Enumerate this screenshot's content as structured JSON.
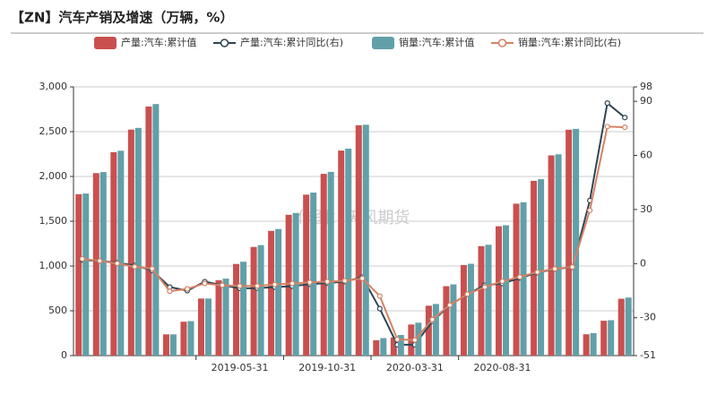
{
  "chart_data": {
    "type": "bar-line",
    "title": "【ZN】汽车产销及增速（万辆，%）",
    "watermark": "作图：天风期货",
    "legend": "top",
    "categories": [
      null,
      null,
      null,
      null,
      null,
      null,
      null,
      null,
      null,
      "2019-05-31",
      null,
      null,
      null,
      null,
      "2019-10-31",
      null,
      null,
      null,
      null,
      "2020-03-31",
      null,
      null,
      null,
      null,
      "2020-08-31",
      null,
      null,
      null,
      null,
      null,
      null,
      null
    ],
    "ylim": [
      0,
      3000
    ],
    "yticks": [
      0,
      500,
      {
        "value": 1000,
        "label": "1,000"
      },
      {
        "value": 1500,
        "label": "1,500"
      },
      {
        "value": 2000,
        "label": "2,000"
      },
      {
        "value": 2500,
        "label": "2,500"
      },
      {
        "value": 3000,
        "label": "3,000"
      }
    ],
    "y2lim": [
      -51,
      98
    ],
    "y2ticks": [
      -51,
      -30,
      0,
      30,
      60,
      90,
      98
    ],
    "grid": true,
    "series": [
      {
        "name": "产量:汽车:累计值",
        "kind": "bar",
        "color": "#c9504f",
        "values": [
          1802,
          2037,
          2271,
          2523,
          2781,
          237,
          378,
          637,
          842,
          1023,
          1213,
          1393,
          1572,
          1797,
          2029,
          2289,
          2572,
          172,
          202,
          347,
          557,
          775,
          1011,
          1222,
          1444,
          1696,
          1951,
          2235,
          2522,
          238,
          389,
          635
        ]
      },
      {
        "name": "产量:汽车:累计同比(右)",
        "kind": "line",
        "axis": "y2",
        "color": "#2f4554",
        "values": [
          2,
          1.5,
          0.5,
          -1,
          -3.8,
          -13,
          -15,
          -10,
          -12,
          -13.7,
          -13.6,
          -13,
          -12.5,
          -11.4,
          -10.8,
          -10,
          -7.5,
          -25,
          -45,
          -45,
          -32,
          -23,
          -17,
          -12,
          -11,
          -8,
          -5,
          -3,
          -2,
          35,
          89,
          81
        ]
      },
      {
        "name": "销量:汽车:累计值",
        "kind": "bar",
        "color": "#61a0a8",
        "values": [
          1809,
          2049,
          2287,
          2542,
          2808,
          237,
          385,
          637,
          859,
          1048,
          1233,
          1413,
          1592,
          1820,
          2051,
          2311,
          2577,
          195,
          230,
          367,
          576,
          795,
          1025,
          1237,
          1455,
          1712,
          1969,
          2247,
          2531,
          250,
          395,
          648
        ]
      },
      {
        "name": "销量:汽车:累计同比(右)",
        "kind": "line",
        "axis": "y2",
        "color": "#d48265",
        "values": [
          2.6,
          1.5,
          0.1,
          -1.7,
          -2.8,
          -15.3,
          -14,
          -11,
          -12,
          -12.4,
          -12.4,
          -11.6,
          -11,
          -10.4,
          -10,
          -9.5,
          -8.2,
          -18,
          -42,
          -42.4,
          -31,
          -23,
          -16.9,
          -13,
          -9.8,
          -7.4,
          -4.7,
          -2.9,
          -1.9,
          29.5,
          76,
          75.6
        ]
      }
    ]
  }
}
